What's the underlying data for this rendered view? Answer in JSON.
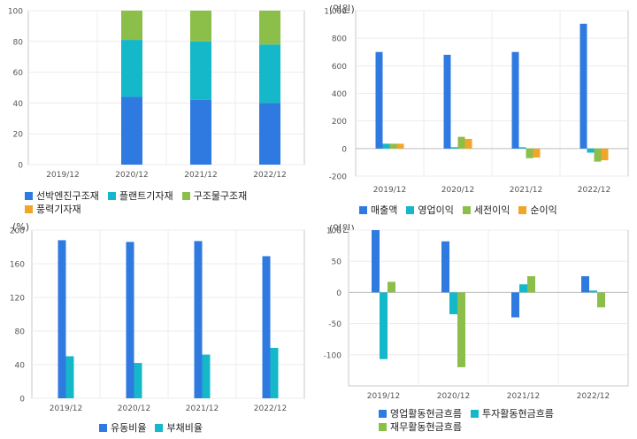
{
  "colors": {
    "blue": "#2f7ae0",
    "teal": "#14b8c8",
    "green": "#8bbf4a",
    "orange": "#f2a52b"
  },
  "chart_data": [
    {
      "type": "bar",
      "stacked": true,
      "unit_label": "",
      "categories": [
        "2019/12",
        "2020/12",
        "2021/12",
        "2022/12"
      ],
      "ylim": [
        0,
        100
      ],
      "yticks": [
        0,
        20,
        40,
        60,
        80,
        100
      ],
      "series": [
        {
          "name": "선박엔진구조재",
          "color": "blue",
          "values": [
            null,
            44,
            42,
            40
          ]
        },
        {
          "name": "플랜트기자재",
          "color": "teal",
          "values": [
            null,
            37,
            38,
            38
          ]
        },
        {
          "name": "구조물구조재",
          "color": "green",
          "values": [
            null,
            19,
            20,
            22
          ]
        },
        {
          "name": "풍력기자재",
          "color": "orange",
          "values": [
            null,
            0,
            0,
            0
          ]
        }
      ]
    },
    {
      "type": "bar",
      "unit_label": "(억원)",
      "categories": [
        "2019/12",
        "2020/12",
        "2021/12",
        "2022/12"
      ],
      "ylim": [
        -200,
        1000
      ],
      "yticks": [
        -200,
        0,
        200,
        400,
        600,
        800,
        1000
      ],
      "ytick_labels": [
        "-200",
        "0",
        "200",
        "400",
        "600",
        "800",
        "1,000"
      ],
      "series": [
        {
          "name": "매출액",
          "color": "blue",
          "values": [
            700,
            680,
            700,
            905
          ]
        },
        {
          "name": "영업이익",
          "color": "teal",
          "values": [
            35,
            10,
            10,
            -30
          ]
        },
        {
          "name": "세전이익",
          "color": "green",
          "values": [
            35,
            85,
            -70,
            -95
          ]
        },
        {
          "name": "순이익",
          "color": "orange",
          "values": [
            35,
            70,
            -65,
            -85
          ]
        }
      ]
    },
    {
      "type": "bar",
      "unit_label": "(%)",
      "categories": [
        "2019/12",
        "2020/12",
        "2021/12",
        "2022/12"
      ],
      "ylim": [
        0,
        200
      ],
      "yticks": [
        0,
        40,
        80,
        120,
        160,
        200
      ],
      "series": [
        {
          "name": "유동비율",
          "color": "blue",
          "values": [
            188,
            186,
            187,
            169
          ]
        },
        {
          "name": "부채비율",
          "color": "teal",
          "values": [
            50,
            42,
            52,
            60
          ]
        }
      ]
    },
    {
      "type": "bar",
      "unit_label": "(억원)",
      "categories": [
        "2019/12",
        "2020/12",
        "2021/12",
        "2022/12"
      ],
      "ylim": [
        -150,
        100
      ],
      "yticks": [
        -100,
        -50,
        0,
        50,
        100
      ],
      "series": [
        {
          "name": "영업활동현금흐름",
          "color": "blue",
          "values": [
            100,
            82,
            -40,
            26
          ]
        },
        {
          "name": "투자활동현금흐름",
          "color": "teal",
          "values": [
            -107,
            -35,
            13,
            3
          ]
        },
        {
          "name": "재무활동현금흐름",
          "color": "green",
          "values": [
            17,
            -120,
            26,
            -24
          ]
        }
      ]
    }
  ]
}
